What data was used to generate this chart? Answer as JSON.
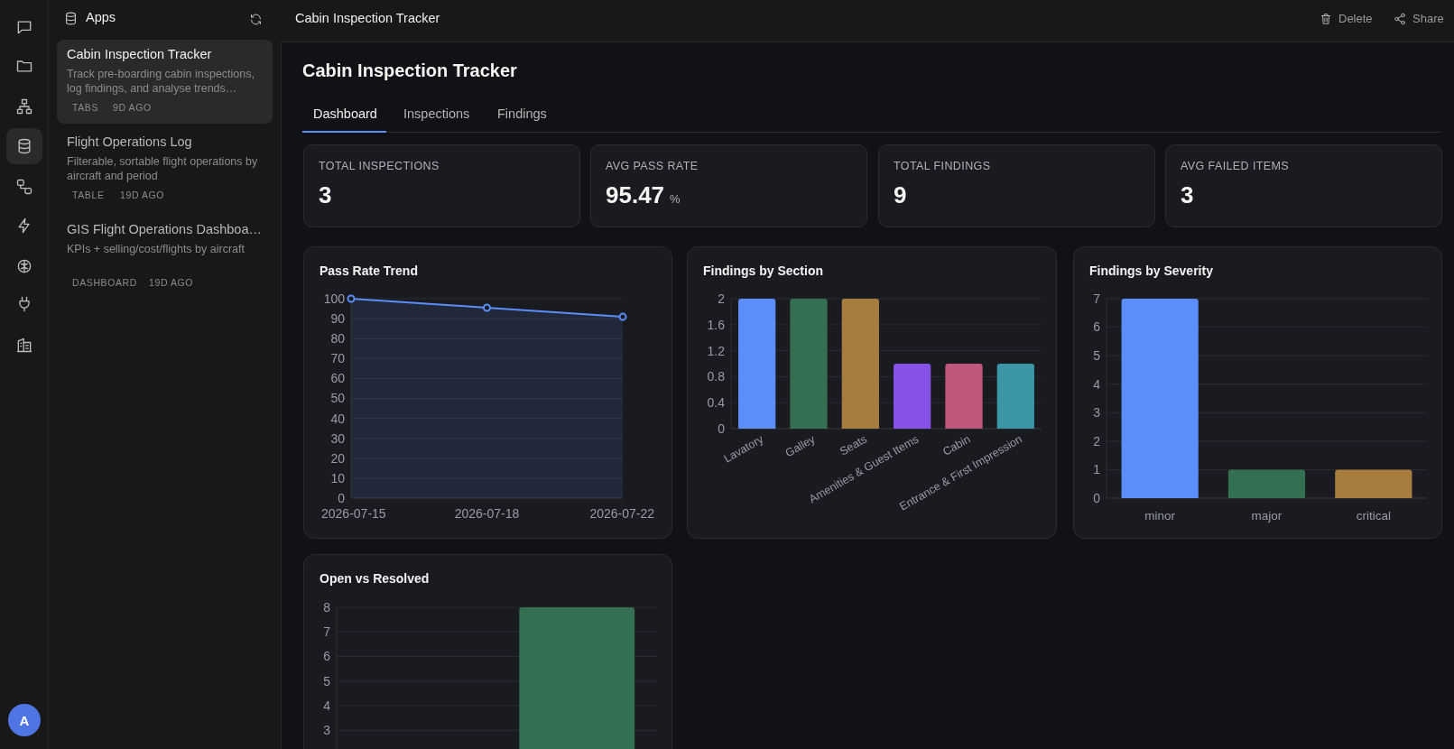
{
  "chart_data": [
    {
      "type": "other",
      "title": "Apps",
      "annotations": [
        "Cabin Inspection Tracker",
        "Track pre-boarding cabin inspections, log findings, and analyse trends…",
        "TABS",
        "9D AGO",
        "Flight Operations Log",
        "Filterable, sortable flight operations by aircraft and period",
        "TABLE",
        "19D AGO",
        "GIS Flight Operations Dashboa…",
        "KPIs + selling/cost/flights by aircraft",
        "DASHBOARD",
        "19D AGO"
      ]
    },
    {
      "type": "other",
      "annotations": [
        "A"
      ]
    },
    {
      "type": "other",
      "title": "Cabin Inspection Tracker",
      "annotations": [
        "Cabin Inspection Tracker",
        "Delete",
        "Share",
        "Dashboard",
        "Inspections",
        "Findings"
      ]
    },
    {
      "type": "other",
      "title": "TOTAL INSPECTIONS",
      "annotations": [
        "3"
      ]
    },
    {
      "type": "other",
      "title": "AVG PASS RATE",
      "annotations": [
        "95.47",
        "%"
      ]
    },
    {
      "type": "other",
      "title": "TOTAL FINDINGS",
      "annotations": [
        "9"
      ]
    },
    {
      "type": "other",
      "title": "AVG FAILED ITEMS",
      "annotations": [
        "3"
      ]
    },
    {
      "type": "area",
      "title": "Pass Rate Trend",
      "categories": [
        "2026-07-15",
        "2026-07-18",
        "2026-07-22"
      ],
      "values": [
        100,
        95.5,
        90.9
      ],
      "color": "#5b8ef7",
      "ylim": [
        0,
        100
      ],
      "yticks": [
        0,
        10,
        20,
        30,
        40,
        50,
        60,
        70,
        80,
        90,
        100
      ],
      "grid": "y",
      "marker": "circle"
    },
    {
      "type": "bar",
      "title": "Findings by Section",
      "categories": [
        "Lavatory",
        "Galley",
        "Seats",
        "Amenities & Guest Items",
        "Cabin",
        "Entrance & First Impression"
      ],
      "values": [
        2,
        2,
        2,
        1,
        1,
        1
      ],
      "colors": [
        "#5b8ef7",
        "#356f52",
        "#a67d3d",
        "#8652e8",
        "#c0577c",
        "#3b97a6"
      ],
      "ylim": [
        0,
        2
      ],
      "yticks": [
        0,
        0.4,
        0.8,
        1.2,
        1.6,
        2
      ],
      "grid": "y"
    },
    {
      "type": "bar",
      "title": "Findings by Severity",
      "categories": [
        "minor",
        "major",
        "critical"
      ],
      "values": [
        7,
        1,
        1
      ],
      "colors": [
        "#5b8ef7",
        "#356f52",
        "#a67d3d"
      ],
      "ylim": [
        0,
        7
      ],
      "yticks": [
        0,
        1,
        2,
        3,
        4,
        5,
        6,
        7
      ],
      "grid": "y"
    },
    {
      "type": "bar",
      "title": "Open vs Resolved",
      "categories": [
        null,
        null
      ],
      "values": [
        null,
        8
      ],
      "color": "#356f52",
      "ylim": [
        0,
        8
      ],
      "yticks": [
        3,
        4,
        5,
        6,
        7,
        8
      ],
      "grid": "y"
    }
  ]
}
